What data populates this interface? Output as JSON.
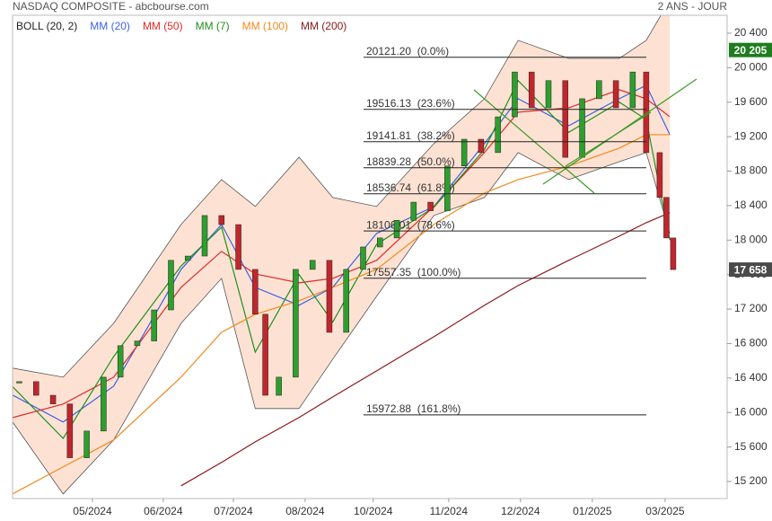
{
  "chart_data": {
    "type": "candlestick",
    "title": "NASDAQ COMPOSITE - abcbourse.com",
    "period": "2 ANS - JOUR",
    "xlim": [
      0,
      212
    ],
    "xticks": [
      {
        "value": 23.7,
        "label": "05/2024"
      },
      {
        "value": 44.7,
        "label": "06/2024"
      },
      {
        "value": 65.5,
        "label": "07/2024"
      },
      {
        "value": 86.8,
        "label": "08/2024"
      },
      {
        "value": 107,
        "label": "10/2024"
      },
      {
        "value": 129.4,
        "label": "11/2024"
      },
      {
        "value": 150.7,
        "label": "12/2024"
      },
      {
        "value": 172,
        "label": "01/2025"
      },
      {
        "value": 193.6,
        "label": "03/2025"
      }
    ],
    "ylim": [
      15002,
      20608
    ],
    "yticks": [
      {
        "value": 15200,
        "label": "15 200"
      },
      {
        "value": 15600,
        "label": "15 600"
      },
      {
        "value": 16000,
        "label": "16 000"
      },
      {
        "value": 16400,
        "label": "16 400"
      },
      {
        "value": 16800,
        "label": "16 800"
      },
      {
        "value": 17200,
        "label": "17 200"
      },
      {
        "value": 17600,
        "label": "17 600"
      },
      {
        "value": 18000,
        "label": "18 000"
      },
      {
        "value": 18400,
        "label": "18 400"
      },
      {
        "value": 18800,
        "label": "18 800"
      },
      {
        "value": 19200,
        "label": "19 200"
      },
      {
        "value": 19600,
        "label": "19 600"
      },
      {
        "value": 20000,
        "label": "20 000"
      },
      {
        "value": 20400,
        "label": "20 400"
      }
    ],
    "up_color": "#2e9e2e",
    "down_color": "#c0262c",
    "candles": {
      "x": [
        2,
        7,
        12,
        17,
        22,
        27,
        32,
        37,
        42,
        47,
        52,
        57,
        62,
        67,
        72,
        75,
        79,
        84,
        89,
        94,
        99,
        104,
        109,
        114,
        119,
        124,
        129,
        134,
        139,
        144,
        149,
        154,
        159,
        164,
        169,
        174,
        179,
        184,
        188,
        192,
        194,
        196
      ],
      "close": [
        16358,
        16200,
        16100,
        15475,
        15785,
        16410,
        16775,
        16830,
        17190,
        17765,
        17815,
        18285,
        18180,
        17660,
        17140,
        16200,
        16410,
        17660,
        17765,
        16930,
        17660,
        17920,
        18025,
        18230,
        18440,
        18340,
        18860,
        19170,
        19015,
        19430,
        19950,
        19535,
        19850,
        18960,
        19640,
        19850,
        19535,
        19950,
        19015,
        18495,
        18025,
        17658
      ]
    },
    "overlay_x": [
      0,
      15,
      30,
      50,
      62,
      72,
      85,
      95,
      108,
      125,
      140,
      150,
      165,
      180,
      188,
      195
    ],
    "bollinger": {
      "name": "BOLL (20, 2)",
      "fill": "#fde2d3",
      "stroke": "#555555",
      "upper": [
        16515,
        16410,
        17035,
        18181,
        18702,
        18390,
        18962,
        18494,
        18390,
        19119,
        19640,
        20317,
        20108,
        20108,
        20317,
        20785
      ],
      "lower": [
        15890,
        15056,
        15681,
        17035,
        17556,
        16046,
        16046,
        16619,
        17348,
        18285,
        18494,
        19015,
        18702,
        18910,
        19015,
        18077
      ]
    },
    "series": [
      {
        "name": "MM (20)",
        "color": "#3d63e0",
        "values": [
          16202,
          15890,
          16306,
          17660,
          18181,
          17452,
          17244,
          17452,
          18077,
          18390,
          19119,
          19640,
          19327,
          19640,
          19796,
          19223
        ]
      },
      {
        "name": "MM (50)",
        "color": "#e02a2a",
        "values": [
          15941,
          16098,
          16410,
          17452,
          17869,
          17608,
          17504,
          17556,
          17765,
          18390,
          19015,
          19483,
          19535,
          19744,
          19640,
          19431
        ]
      },
      {
        "name": "MM (7)",
        "color": "#1f8f1f",
        "values": [
          16300,
          15700,
          16650,
          17700,
          18150,
          16700,
          17600,
          17050,
          17950,
          18380,
          19050,
          19850,
          19250,
          19600,
          19400,
          18000
        ]
      },
      {
        "name": "MM (100)",
        "color": "#f08a1c",
        "values": [
          15056,
          15369,
          15681,
          16410,
          16931,
          17139,
          17296,
          17452,
          17660,
          18181,
          18546,
          18702,
          18858,
          19067,
          19223,
          19223
        ]
      },
      {
        "name": "MM (200)",
        "color": "#8b1a1a",
        "values": [
          null,
          null,
          null,
          15150,
          15421,
          15660,
          15942,
          16181,
          16483,
          16879,
          17244,
          17473,
          17765,
          18046,
          18202,
          18317
        ]
      }
    ],
    "fib_levels": [
      {
        "value": 20121.2,
        "label": "20121.20  (0.0%)"
      },
      {
        "value": 19516.13,
        "label": "19516.13  (23.6%)"
      },
      {
        "value": 19141.81,
        "label": "19141.81  (38.2%)"
      },
      {
        "value": 18839.28,
        "label": "18839.28  (50.0%)"
      },
      {
        "value": 18536.74,
        "label": "18536.74  (61.8%)"
      },
      {
        "value": 18106.01,
        "label": "18106.01  (78.6%)"
      },
      {
        "value": 17557.35,
        "label": "17557.35  (100.0%)"
      },
      {
        "value": 15972.88,
        "label": "15972.88  (161.8%)"
      }
    ],
    "price_tags": [
      {
        "value": 20205,
        "label": "20 205",
        "color": "#1e7d1e"
      },
      {
        "value": 17658,
        "label": "17 658",
        "color": "#4a4a4a"
      }
    ]
  }
}
